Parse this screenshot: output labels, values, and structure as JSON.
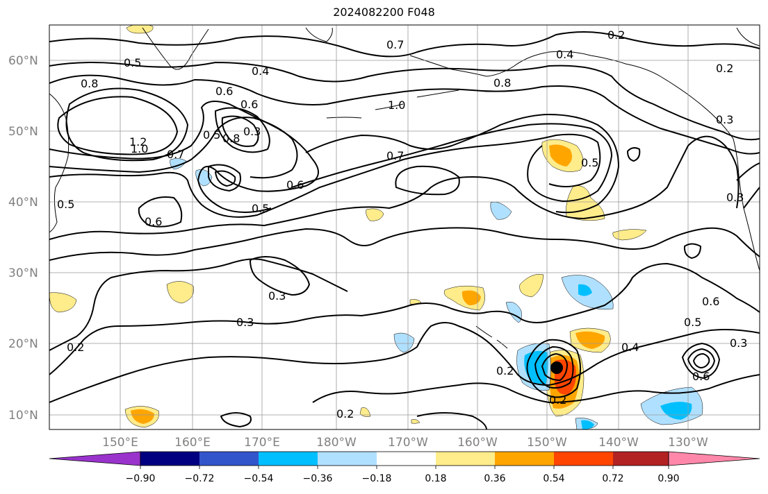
{
  "title": "2024082200 F048",
  "map": {
    "lat_ticks": [
      "60°N",
      "50°N",
      "40°N",
      "30°N",
      "20°N",
      "10°N"
    ],
    "lon_ticks": [
      "150°E",
      "160°E",
      "170°E",
      "180°W",
      "170°W",
      "160°W",
      "150°W",
      "140°W",
      "130°W"
    ],
    "contour_labels": [
      "0.5",
      "0.8",
      "1.2",
      "1.0",
      "0.7",
      "0.4",
      "0.6",
      "0.3",
      "0.8",
      "0.5",
      "0.6",
      "0.5",
      "0.7",
      "0.6",
      "0.6",
      "0.5",
      "1.0",
      "0.7",
      "0.8",
      "0.2",
      "0.4",
      "0.2",
      "0.3",
      "0.3",
      "0.3",
      "0.3",
      "0.2",
      "0.2",
      "0.2",
      "0.4",
      "0.5",
      "0.6",
      "0.6",
      "0.2",
      "0.5",
      "0.3"
    ],
    "storm_marker": "storm-center"
  },
  "colorbar": {
    "ticks": [
      "−0.90",
      "−0.72",
      "−0.54",
      "−0.36",
      "−0.18",
      "0.18",
      "0.36",
      "0.54",
      "0.72",
      "0.90"
    ],
    "colors": [
      "#9933cc",
      "#000080",
      "#3355cc",
      "#00bfff",
      "#b0e0ff",
      "#ffffff",
      "#ffec8b",
      "#ffa500",
      "#ff4500",
      "#b22222",
      "#ff88aa"
    ]
  },
  "shading_colors": {
    "pos_light": "#ffec8b",
    "pos_mid": "#ffa500",
    "pos_strong": "#ff4500",
    "neg_light": "#b0e0ff",
    "neg_mid": "#00bfff"
  }
}
